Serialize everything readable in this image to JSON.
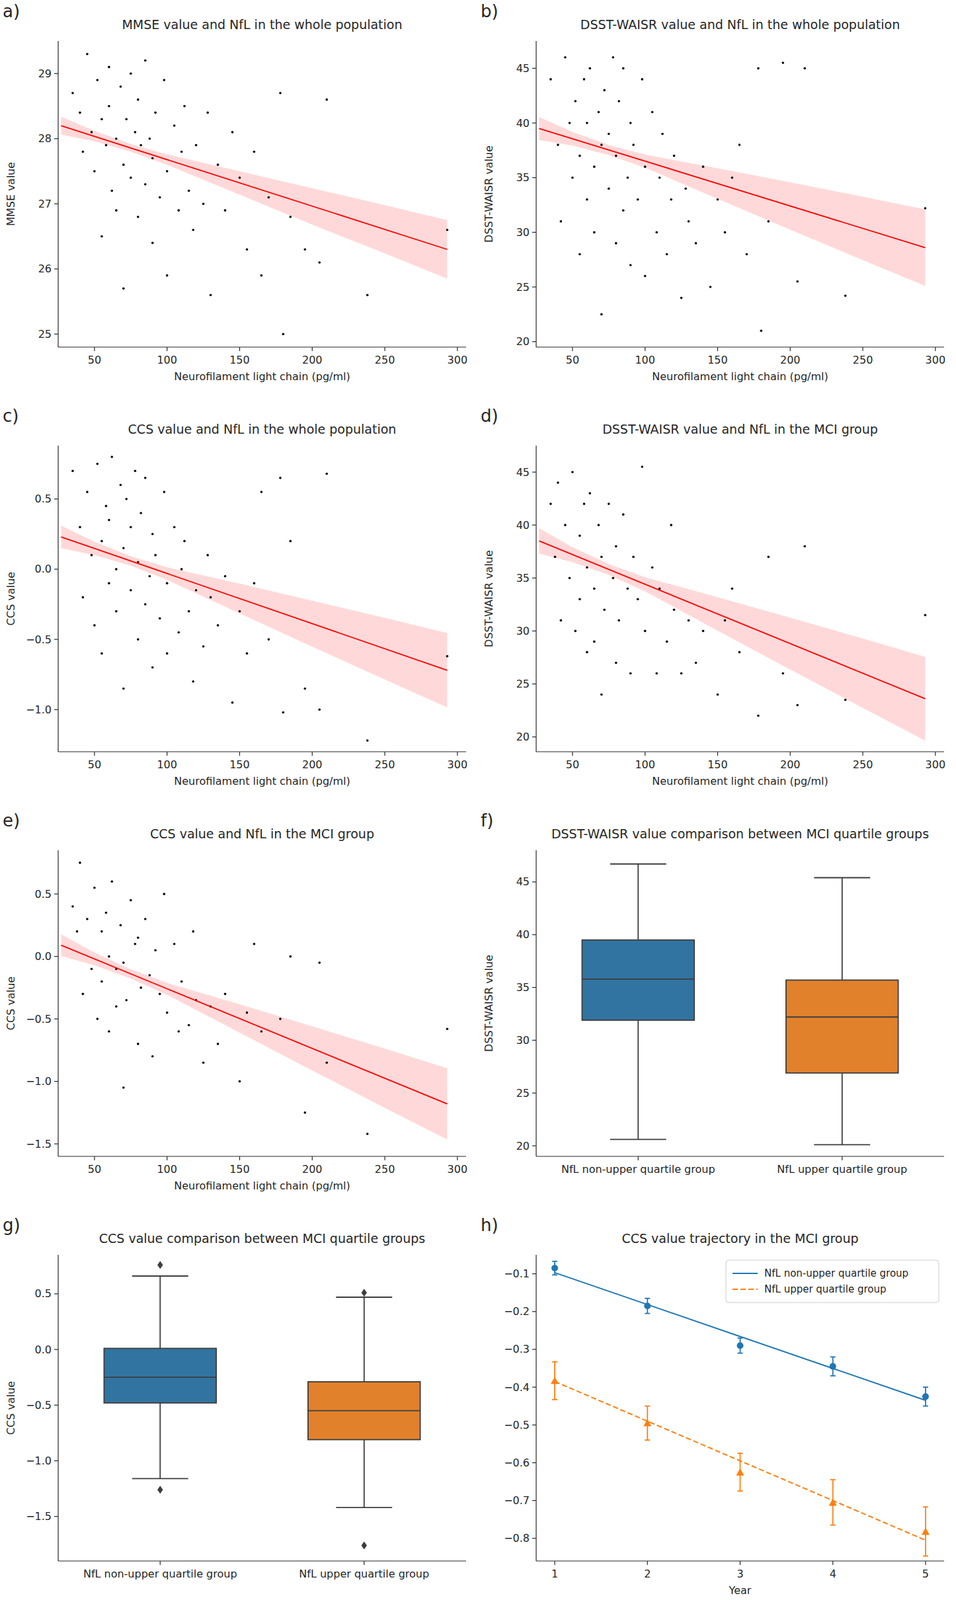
{
  "chart_data": [
    {
      "type": "scatter",
      "panel": "a)",
      "title": "MMSE value and NfL in the whole population",
      "x_label": "Neurofilament light chain (pg/ml)",
      "y_label": "MMSE value",
      "color": "#000000",
      "marker": "circle",
      "x": [
        35,
        40,
        42,
        45,
        48,
        50,
        52,
        55,
        55,
        58,
        60,
        60,
        62,
        65,
        65,
        68,
        70,
        70,
        72,
        75,
        75,
        78,
        80,
        80,
        82,
        85,
        85,
        88,
        90,
        90,
        92,
        95,
        98,
        100,
        100,
        105,
        108,
        110,
        112,
        115,
        118,
        120,
        125,
        128,
        130,
        135,
        140,
        145,
        150,
        155,
        160,
        165,
        170,
        178,
        180,
        185,
        195,
        205,
        210,
        238,
        293
      ],
      "values": [
        28.7,
        28.4,
        27.8,
        29.3,
        28.1,
        27.5,
        28.9,
        28.3,
        26.5,
        27.9,
        29.1,
        28.5,
        27.2,
        28.0,
        26.9,
        28.8,
        27.6,
        25.7,
        28.3,
        29.0,
        27.4,
        28.1,
        26.8,
        28.6,
        27.9,
        27.3,
        29.2,
        28.0,
        26.4,
        27.7,
        28.4,
        27.1,
        28.9,
        27.5,
        25.9,
        28.2,
        26.9,
        27.8,
        28.5,
        27.2,
        26.6,
        27.9,
        27.0,
        28.4,
        25.6,
        27.6,
        26.9,
        28.1,
        27.4,
        26.3,
        27.8,
        25.9,
        27.1,
        28.7,
        25.0,
        26.8,
        26.3,
        26.1,
        28.6,
        25.6,
        26.6
      ],
      "fit": {
        "color": "#ff0000",
        "x": [
          27,
          293
        ],
        "values": [
          28.2,
          26.3
        ]
      },
      "band": {
        "x": [
          27,
          50,
          75,
          100,
          150,
          200,
          250,
          293
        ],
        "lower": [
          28.06,
          27.96,
          27.8,
          27.6,
          27.14,
          26.68,
          26.24,
          25.85
        ],
        "upper": [
          28.34,
          28.12,
          27.92,
          27.76,
          27.5,
          27.24,
          26.98,
          26.75
        ]
      },
      "xlim": [
        25,
        306
      ],
      "xticks": [
        50,
        100,
        150,
        200,
        250,
        300
      ],
      "ylim": [
        24.8,
        29.5
      ],
      "yticks": [
        25,
        26,
        27,
        28,
        29
      ]
    },
    {
      "type": "scatter",
      "panel": "b)",
      "title": "DSST-WAISR value and NfL in the whole population",
      "x_label": "Neurofilament light chain (pg/ml)",
      "y_label": "DSST-WAISR value",
      "color": "#000000",
      "marker": "circle",
      "x": [
        35,
        40,
        42,
        45,
        48,
        50,
        52,
        55,
        55,
        58,
        60,
        60,
        62,
        65,
        65,
        68,
        70,
        70,
        72,
        75,
        75,
        78,
        80,
        80,
        82,
        85,
        85,
        88,
        90,
        90,
        92,
        95,
        98,
        100,
        100,
        105,
        108,
        110,
        112,
        115,
        118,
        120,
        125,
        128,
        130,
        135,
        140,
        145,
        150,
        155,
        160,
        165,
        170,
        178,
        180,
        185,
        195,
        205,
        210,
        238,
        293
      ],
      "values": [
        44,
        38,
        31,
        46,
        40,
        35,
        42,
        37,
        28,
        44,
        33,
        40,
        45,
        36,
        30,
        41,
        38,
        22.5,
        43,
        34,
        39,
        46,
        29,
        37,
        42,
        32,
        45,
        35,
        27,
        40,
        38,
        33,
        44,
        36,
        26,
        41,
        30,
        35,
        39,
        28,
        33,
        37,
        24,
        34,
        31,
        29,
        36,
        25,
        33,
        30,
        35,
        38,
        28,
        45,
        21,
        31,
        45.5,
        25.5,
        45,
        24.2,
        32.2
      ],
      "fit": {
        "color": "#ff0000",
        "x": [
          27,
          293
        ],
        "values": [
          39.5,
          28.6
        ]
      },
      "band": {
        "x": [
          27,
          50,
          75,
          100,
          150,
          200,
          250,
          293
        ],
        "lower": [
          38.45,
          37.93,
          37.07,
          35.91,
          33.06,
          30.24,
          27.46,
          25.1
        ],
        "upper": [
          40.55,
          39.19,
          37.99,
          37.11,
          35.86,
          34.58,
          33.26,
          32.1
        ]
      },
      "xlim": [
        25,
        306
      ],
      "xticks": [
        50,
        100,
        150,
        200,
        250,
        300
      ],
      "ylim": [
        19.5,
        47.5
      ],
      "yticks": [
        20,
        25,
        30,
        35,
        40,
        45
      ]
    },
    {
      "type": "scatter",
      "panel": "c)",
      "title": "CCS value and NfL in the whole population",
      "x_label": "Neurofilament light chain (pg/ml)",
      "y_label": "CCS value",
      "color": "#000000",
      "marker": "circle",
      "x": [
        35,
        40,
        42,
        45,
        48,
        50,
        52,
        55,
        55,
        58,
        60,
        60,
        62,
        65,
        65,
        68,
        70,
        70,
        72,
        75,
        75,
        78,
        80,
        80,
        82,
        85,
        85,
        88,
        90,
        90,
        92,
        95,
        98,
        100,
        100,
        105,
        108,
        110,
        112,
        115,
        118,
        120,
        125,
        128,
        130,
        135,
        140,
        145,
        150,
        155,
        160,
        165,
        170,
        178,
        180,
        185,
        195,
        205,
        210,
        238,
        293
      ],
      "values": [
        0.7,
        0.3,
        -0.2,
        0.55,
        0.1,
        -0.4,
        0.75,
        0.2,
        -0.6,
        0.45,
        -0.1,
        0.35,
        0.8,
        0.0,
        -0.3,
        0.6,
        0.15,
        -0.85,
        0.5,
        -0.15,
        0.3,
        0.7,
        -0.5,
        0.05,
        0.4,
        -0.25,
        0.65,
        -0.05,
        -0.7,
        0.25,
        0.1,
        -0.35,
        0.55,
        -0.1,
        -0.6,
        0.3,
        -0.45,
        0.0,
        0.2,
        -0.3,
        -0.8,
        -0.15,
        -0.55,
        0.1,
        -0.2,
        -0.4,
        -0.05,
        -0.95,
        -0.3,
        -0.6,
        -0.1,
        0.55,
        -0.5,
        0.65,
        -1.02,
        0.2,
        -0.85,
        -1.0,
        0.68,
        -1.22,
        -0.62
      ],
      "fit": {
        "color": "#ff0000",
        "x": [
          27,
          293
        ],
        "values": [
          0.23,
          -0.72
        ]
      },
      "band": {
        "x": [
          27,
          50,
          75,
          100,
          150,
          200,
          250,
          293
        ],
        "lower": [
          0.15,
          0.1,
          0.025,
          -0.076,
          -0.315,
          -0.552,
          -0.786,
          -0.985
        ],
        "upper": [
          0.31,
          0.196,
          0.093,
          0.014,
          -0.103,
          -0.224,
          -0.346,
          -0.455
        ]
      },
      "xlim": [
        25,
        306
      ],
      "xticks": [
        50,
        100,
        150,
        200,
        250,
        300
      ],
      "ylim": [
        -1.3,
        0.88
      ],
      "yticks": [
        {
          "value": -1.0,
          "label": "−1.0"
        },
        {
          "value": -0.5,
          "label": "−0.5"
        },
        {
          "value": 0.0,
          "label": "0.0"
        },
        0.5
      ]
    },
    {
      "type": "scatter",
      "panel": "d)",
      "title": "DSST-WAISR value and NfL in the MCI group",
      "x_label": "Neurofilament light chain (pg/ml)",
      "y_label": "DSST-WAISR value",
      "color": "#000000",
      "marker": "circle",
      "x": [
        35,
        38,
        40,
        42,
        45,
        48,
        50,
        52,
        55,
        55,
        58,
        60,
        60,
        62,
        65,
        65,
        68,
        70,
        70,
        72,
        75,
        78,
        80,
        80,
        82,
        85,
        88,
        90,
        92,
        95,
        98,
        100,
        105,
        108,
        110,
        115,
        118,
        120,
        125,
        130,
        135,
        140,
        150,
        155,
        160,
        165,
        178,
        185,
        195,
        205,
        210,
        238,
        293
      ],
      "values": [
        42,
        37,
        44,
        31,
        40,
        35,
        45,
        30,
        39,
        33,
        42,
        28,
        36,
        43,
        34,
        29,
        40,
        37,
        24,
        32,
        42,
        35,
        27,
        38,
        31,
        41,
        34,
        26,
        37,
        33,
        45.5,
        30,
        36,
        26,
        34,
        29,
        40,
        32,
        26,
        31,
        27,
        30,
        24,
        31,
        34,
        28,
        22,
        37,
        26,
        23,
        38,
        23.5,
        31.5
      ],
      "fit": {
        "color": "#ff0000",
        "x": [
          27,
          293
        ],
        "values": [
          38.5,
          23.6
        ]
      },
      "band": {
        "x": [
          27,
          50,
          75,
          100,
          150,
          200,
          250,
          293
        ],
        "lower": [
          37.31,
          36.5,
          35.3,
          33.74,
          30.03,
          26.36,
          22.73,
          19.65
        ],
        "upper": [
          39.69,
          37.92,
          36.32,
          35.08,
          33.19,
          31.26,
          29.29,
          27.55
        ]
      },
      "xlim": [
        25,
        306
      ],
      "xticks": [
        50,
        100,
        150,
        200,
        250,
        300
      ],
      "ylim": [
        18.6,
        47.5
      ],
      "yticks": [
        20,
        25,
        30,
        35,
        40,
        45
      ]
    },
    {
      "type": "scatter",
      "panel": "e)",
      "title": "CCS value and NfL in the MCI group",
      "x_label": "Neurofilament light chain (pg/ml)",
      "y_label": "CCS value",
      "color": "#000000",
      "marker": "circle",
      "x": [
        35,
        38,
        40,
        42,
        45,
        48,
        50,
        52,
        55,
        55,
        58,
        60,
        60,
        62,
        65,
        65,
        68,
        70,
        70,
        72,
        75,
        78,
        80,
        80,
        82,
        85,
        88,
        90,
        92,
        95,
        98,
        100,
        105,
        108,
        110,
        115,
        118,
        120,
        125,
        130,
        135,
        140,
        150,
        155,
        160,
        165,
        178,
        185,
        195,
        205,
        210,
        238,
        293
      ],
      "values": [
        0.4,
        0.2,
        0.75,
        -0.3,
        0.3,
        -0.1,
        0.55,
        -0.5,
        0.2,
        -0.2,
        0.35,
        -0.6,
        0.0,
        0.6,
        -0.1,
        -0.4,
        0.25,
        -0.05,
        -1.05,
        -0.35,
        0.45,
        0.1,
        -0.7,
        0.15,
        -0.25,
        0.3,
        -0.15,
        -0.8,
        0.05,
        -0.3,
        0.5,
        -0.45,
        0.1,
        -0.6,
        -0.2,
        -0.55,
        0.2,
        -0.35,
        -0.85,
        -0.4,
        -0.7,
        -0.3,
        -1.0,
        -0.45,
        0.1,
        -0.6,
        -0.5,
        0.0,
        -1.25,
        -0.05,
        -0.85,
        -1.42,
        -0.58
      ],
      "fit": {
        "color": "#ff0000",
        "x": [
          27,
          293
        ],
        "values": [
          0.09,
          -1.18
        ]
      },
      "band": {
        "x": [
          27,
          50,
          75,
          100,
          150,
          200,
          250,
          293
        ],
        "lower": [
          0.004,
          -0.071,
          -0.176,
          -0.307,
          -0.611,
          -0.913,
          -1.212,
          -1.465
        ],
        "upper": [
          0.176,
          0.031,
          -0.102,
          -0.211,
          -0.383,
          -0.559,
          -0.738,
          -0.895
        ]
      },
      "xlim": [
        25,
        306
      ],
      "xticks": [
        50,
        100,
        150,
        200,
        250,
        300
      ],
      "ylim": [
        -1.6,
        0.85
      ],
      "yticks": [
        {
          "value": -1.5,
          "label": "−1.5"
        },
        {
          "value": -1.0,
          "label": "−1.0"
        },
        {
          "value": -0.5,
          "label": "−0.5"
        },
        {
          "value": 0.0,
          "label": "0.0"
        },
        0.5
      ]
    },
    {
      "type": "box",
      "panel": "f)",
      "title": "DSST-WAISR value comparison between MCI quartile groups",
      "y_label": "DSST-WAISR value",
      "categories": [
        "NfL non-upper quartile group",
        "NfL upper quartile group"
      ],
      "colors": [
        "#3274a1",
        "#e1812c"
      ],
      "boxes": [
        {
          "whisker_low": 20.6,
          "q1": 31.9,
          "median": 35.8,
          "q3": 39.5,
          "whisker_high": 46.7,
          "outliers": []
        },
        {
          "whisker_low": 20.1,
          "q1": 26.9,
          "median": 32.2,
          "q3": 35.7,
          "whisker_high": 45.4,
          "outliers": []
        }
      ],
      "ylim": [
        19,
        48
      ],
      "yticks": [
        20,
        25,
        30,
        35,
        40,
        45
      ]
    },
    {
      "type": "box",
      "panel": "g)",
      "title": "CCS value comparison between MCI quartile groups",
      "y_label": "CCS value",
      "categories": [
        "NfL non-upper quartile group",
        "NfL upper quartile group"
      ],
      "colors": [
        "#3274a1",
        "#e1812c"
      ],
      "boxes": [
        {
          "whisker_low": -1.16,
          "q1": -0.48,
          "median": -0.25,
          "q3": 0.01,
          "whisker_high": 0.66,
          "outliers": [
            0.76,
            -1.26
          ]
        },
        {
          "whisker_low": -1.42,
          "q1": -0.81,
          "median": -0.55,
          "q3": -0.29,
          "whisker_high": 0.47,
          "outliers": [
            0.51,
            -1.76
          ]
        }
      ],
      "ylim": [
        -1.9,
        0.85
      ],
      "yticks": [
        {
          "value": -1.5,
          "label": "−1.5"
        },
        {
          "value": -1.0,
          "label": "−1.0"
        },
        {
          "value": -0.5,
          "label": "−0.5"
        },
        {
          "value": 0.0,
          "label": "0.0"
        },
        0.5
      ]
    },
    {
      "type": "line",
      "panel": "h)",
      "title": "CCS value trajectory in the MCI group",
      "x_label": "Year",
      "x": [
        1,
        2,
        3,
        4,
        5
      ],
      "series": [
        {
          "name": "NfL non-upper quartile group",
          "color": "#1f77b4",
          "marker": "circle",
          "line_style": "solid",
          "values": [
            -0.085,
            -0.185,
            -0.29,
            -0.345,
            -0.425
          ],
          "errors": [
            0.018,
            0.02,
            0.02,
            0.025,
            0.025
          ],
          "fit_values": [
            -0.097,
            -0.1815,
            -0.266,
            -0.3505,
            -0.435
          ]
        },
        {
          "name": "NfL upper quartile group",
          "color": "#ff7f0e",
          "marker": "triangle",
          "line_style": "dashed",
          "values": [
            -0.383,
            -0.495,
            -0.625,
            -0.705,
            -0.782
          ],
          "errors": [
            0.05,
            0.045,
            0.05,
            0.06,
            0.065
          ],
          "fit_values": [
            -0.385,
            -0.49,
            -0.595,
            -0.7,
            -0.805
          ]
        }
      ],
      "xlim": [
        0.8,
        5.2
      ],
      "xticks": [
        1,
        2,
        3,
        4,
        5
      ],
      "ylim": [
        -0.86,
        -0.05
      ],
      "yticks": [
        {
          "value": -0.8,
          "label": "−0.8"
        },
        {
          "value": -0.7,
          "label": "−0.7"
        },
        {
          "value": -0.6,
          "label": "−0.6"
        },
        {
          "value": -0.5,
          "label": "−0.5"
        },
        {
          "value": -0.4,
          "label": "−0.4"
        },
        {
          "value": -0.3,
          "label": "−0.3"
        },
        {
          "value": -0.2,
          "label": "−0.2"
        },
        {
          "value": -0.1,
          "label": "−0.1"
        }
      ],
      "legend": "upper right"
    }
  ]
}
